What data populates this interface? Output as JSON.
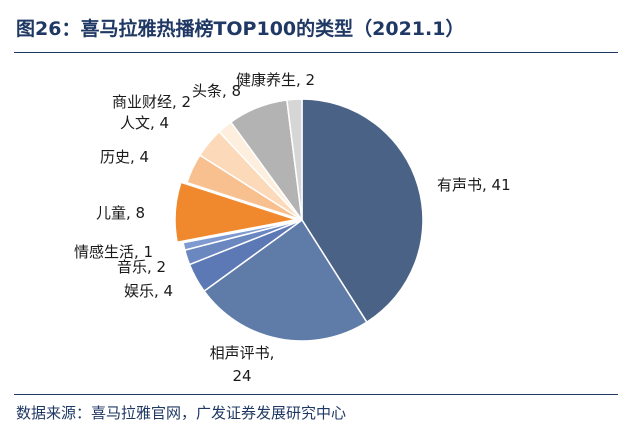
{
  "title": "图26：喜马拉雅热播榜TOP100的类型（2021.1）",
  "source": "数据来源：喜马拉雅官网，广发证券发展研究中心",
  "chart_data": {
    "type": "pie",
    "categories": [
      "有声书",
      "相声评书",
      "娱乐",
      "音乐",
      "情感生活",
      "儿童",
      "历史",
      "人文",
      "商业财经",
      "头条",
      "健康养生"
    ],
    "values": [
      41,
      24,
      4,
      2,
      1,
      8,
      4,
      4,
      2,
      8,
      2
    ],
    "colors": [
      "#4b6287",
      "#5f7ba8",
      "#5d79b5",
      "#6a87c0",
      "#7e9ad0",
      "#f0892e",
      "#f8c08f",
      "#fbd9b9",
      "#fdeedd",
      "#b3b3b3",
      "#d6d6d6"
    ],
    "labels": [
      "有声书, 41",
      "相声评书, 24",
      "娱乐, 4",
      "音乐, 2",
      "情感生活, 1",
      "儿童, 8",
      "历史, 4",
      "人文, 4",
      "商业财经, 2",
      "头条, 8",
      "健康养生, 2"
    ],
    "title": "",
    "legend": "none"
  }
}
